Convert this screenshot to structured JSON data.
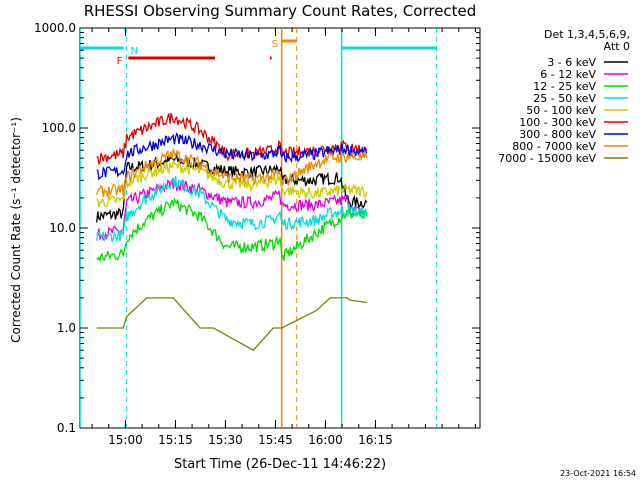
{
  "chart_data": {
    "type": "line",
    "title": "RHESSI Observing Summary Count Rates, Corrected",
    "xlabel": "Start Time (26-Dec-11 14:46:22)",
    "ylabel": "Corrected Count Rate (s⁻¹ detector⁻¹)",
    "yscale": "log",
    "ylim": [
      0.1,
      1000
    ],
    "xlim_minutes": [
      0,
      120
    ],
    "xtick_labels": [
      "15:00",
      "15:15",
      "15:30",
      "15:45",
      "16:00",
      "16:15"
    ],
    "xtick_minutes": [
      13.63,
      28.63,
      43.63,
      58.63,
      73.63,
      88.63
    ],
    "ytick_labels": [
      "0.1",
      "1.0",
      "10.0",
      "100.0",
      "1000.0"
    ],
    "ytick_values": [
      0.1,
      1,
      10,
      100,
      1000
    ],
    "legend_header": [
      "Det 1,3,4,5,6,9,",
      "Att 0"
    ],
    "legend_position": "right",
    "timestamp": "23-Oct-2021 16:54",
    "gaps_minutes": [
      [
        61.5,
        71.0
      ]
    ],
    "series": [
      {
        "name": "3 - 6 keV",
        "color": "#000000",
        "x": [
          5,
          13,
          14,
          20,
          28,
          36,
          44,
          52,
          58,
          60,
          60.5,
          71,
          72,
          75,
          78,
          80,
          81,
          83,
          86
        ],
        "y": [
          13,
          14,
          40,
          42,
          48,
          43,
          37,
          36,
          38,
          40,
          30,
          30,
          31,
          31,
          32,
          20,
          18,
          18,
          18
        ]
      },
      {
        "name": "6 - 12 keV",
        "color": "#dd00dd",
        "x": [
          5,
          13,
          14,
          20,
          28,
          36,
          44,
          52,
          58,
          60,
          60.5,
          71,
          75,
          80,
          81,
          86
        ],
        "y": [
          8.5,
          9.5,
          18,
          22,
          28,
          24,
          18,
          18,
          20,
          22,
          17,
          17,
          18,
          19,
          15,
          14
        ]
      },
      {
        "name": "12 - 25 keV",
        "color": "#00dd00",
        "x": [
          5,
          13,
          14,
          20,
          28,
          36,
          44,
          52,
          58,
          60,
          60.5,
          71,
          75,
          80,
          81,
          86
        ],
        "y": [
          5,
          5.5,
          8,
          12,
          18,
          13,
          6.5,
          6.5,
          7,
          8,
          5,
          9,
          11,
          14,
          14,
          13
        ]
      },
      {
        "name": "25 - 50 keV",
        "color": "#00dddd",
        "x": [
          5,
          13,
          14,
          20,
          28,
          36,
          44,
          52,
          58,
          60,
          60.5,
          71,
          75,
          80,
          81,
          86
        ],
        "y": [
          8,
          8.5,
          13,
          20,
          30,
          22,
          12,
          11,
          12,
          14,
          11,
          12,
          14,
          15,
          15,
          14
        ]
      },
      {
        "name": "50 - 100 keV",
        "color": "#cccc00",
        "x": [
          5,
          13,
          14,
          20,
          28,
          36,
          44,
          52,
          58,
          60,
          60.5,
          71,
          75,
          80,
          81,
          86
        ],
        "y": [
          18,
          19,
          28,
          35,
          42,
          37,
          28,
          27,
          30,
          32,
          24,
          22,
          23,
          24,
          24,
          23
        ]
      },
      {
        "name": "100 - 300 keV",
        "color": "#dd0000",
        "x": [
          5,
          13,
          14,
          20,
          28,
          36,
          44,
          52,
          58,
          60,
          60.5,
          71,
          75,
          80,
          81,
          86
        ],
        "y": [
          50,
          55,
          80,
          100,
          130,
          95,
          55,
          55,
          60,
          65,
          55,
          60,
          64,
          66,
          64,
          60
        ]
      },
      {
        "name": "300 - 800 keV",
        "color": "#0000dd",
        "x": [
          5,
          13,
          14,
          20,
          28,
          36,
          44,
          52,
          58,
          60,
          60.5,
          71,
          75,
          80,
          81,
          86
        ],
        "y": [
          35,
          37,
          55,
          65,
          78,
          68,
          55,
          52,
          55,
          60,
          50,
          55,
          58,
          62,
          60,
          56
        ]
      },
      {
        "name": "800 - 7000 keV",
        "color": "#ee8800",
        "x": [
          5,
          13,
          14,
          20,
          28,
          36,
          44,
          52,
          58,
          60,
          60.5,
          71,
          75,
          80,
          81,
          86
        ],
        "y": [
          23,
          24,
          32,
          42,
          55,
          44,
          32,
          31,
          33,
          35,
          28,
          45,
          50,
          52,
          52,
          50
        ]
      },
      {
        "name": "7000 - 15000 keV",
        "color": "#808000",
        "x": [
          5,
          13,
          14,
          20,
          28,
          36,
          40,
          52,
          58,
          60,
          60.5,
          71,
          75,
          80,
          81,
          86
        ],
        "y": [
          1,
          1,
          1.3,
          2.0,
          2.0,
          1.0,
          1.0,
          0.6,
          1.0,
          1.0,
          1.0,
          1.5,
          2.0,
          2.0,
          1.9,
          1.8
        ]
      }
    ],
    "annotations": [
      {
        "label": "N",
        "color": "#00dddd",
        "x_minutes": 14
      },
      {
        "label": "F",
        "color": "#dd0000",
        "x_minutes": 14
      },
      {
        "label": "S",
        "color": "#ee8800",
        "x_minutes": 60.5
      }
    ],
    "bars": [
      {
        "name": "night",
        "color": "#00dddd",
        "ranges_minutes": [
          [
            0,
            13
          ],
          [
            78.5,
            107
          ]
        ]
      },
      {
        "name": "flare",
        "color": "#dd0000",
        "ranges_minutes": [
          [
            14.5,
            40.5
          ],
          [
            57,
            57.5
          ]
        ]
      },
      {
        "name": "saa",
        "color": "#ee8800",
        "ranges_minutes": [
          [
            60.5,
            65
          ]
        ]
      }
    ],
    "vlines": [
      {
        "color": "#00dddd",
        "style": "solid",
        "x_minutes": 0
      },
      {
        "color": "#00dddd",
        "style": "dashed",
        "x_minutes": 14
      },
      {
        "color": "#ee8800",
        "style": "solid",
        "x_minutes": 60.5
      },
      {
        "color": "#ee8800",
        "style": "dashed",
        "x_minutes": 65
      },
      {
        "color": "#00dddd",
        "style": "solid",
        "x_minutes": 78.5
      },
      {
        "color": "#00dddd",
        "style": "dashed",
        "x_minutes": 107
      }
    ]
  }
}
